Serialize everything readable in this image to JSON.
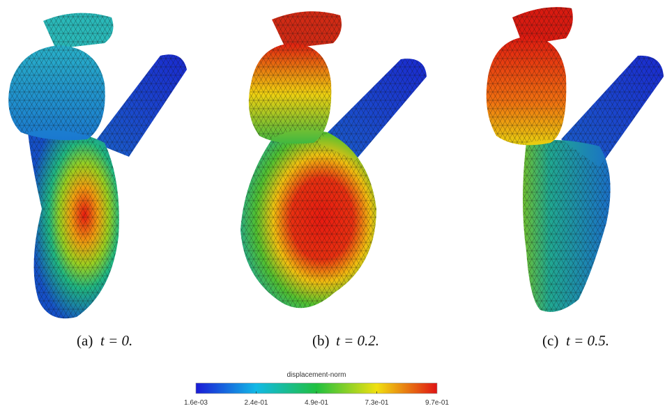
{
  "panels": [
    {
      "label": "(a)",
      "expr": "t = 0."
    },
    {
      "label": "(b)",
      "expr": "t = 0.2."
    },
    {
      "label": "(c)",
      "expr": "t = 0.5."
    }
  ],
  "colorbar": {
    "title": "displacement-norm",
    "ticks": [
      "1.6e-03",
      "2.4e-01",
      "4.9e-01",
      "7.3e-01",
      "9.7e-01"
    ]
  }
}
